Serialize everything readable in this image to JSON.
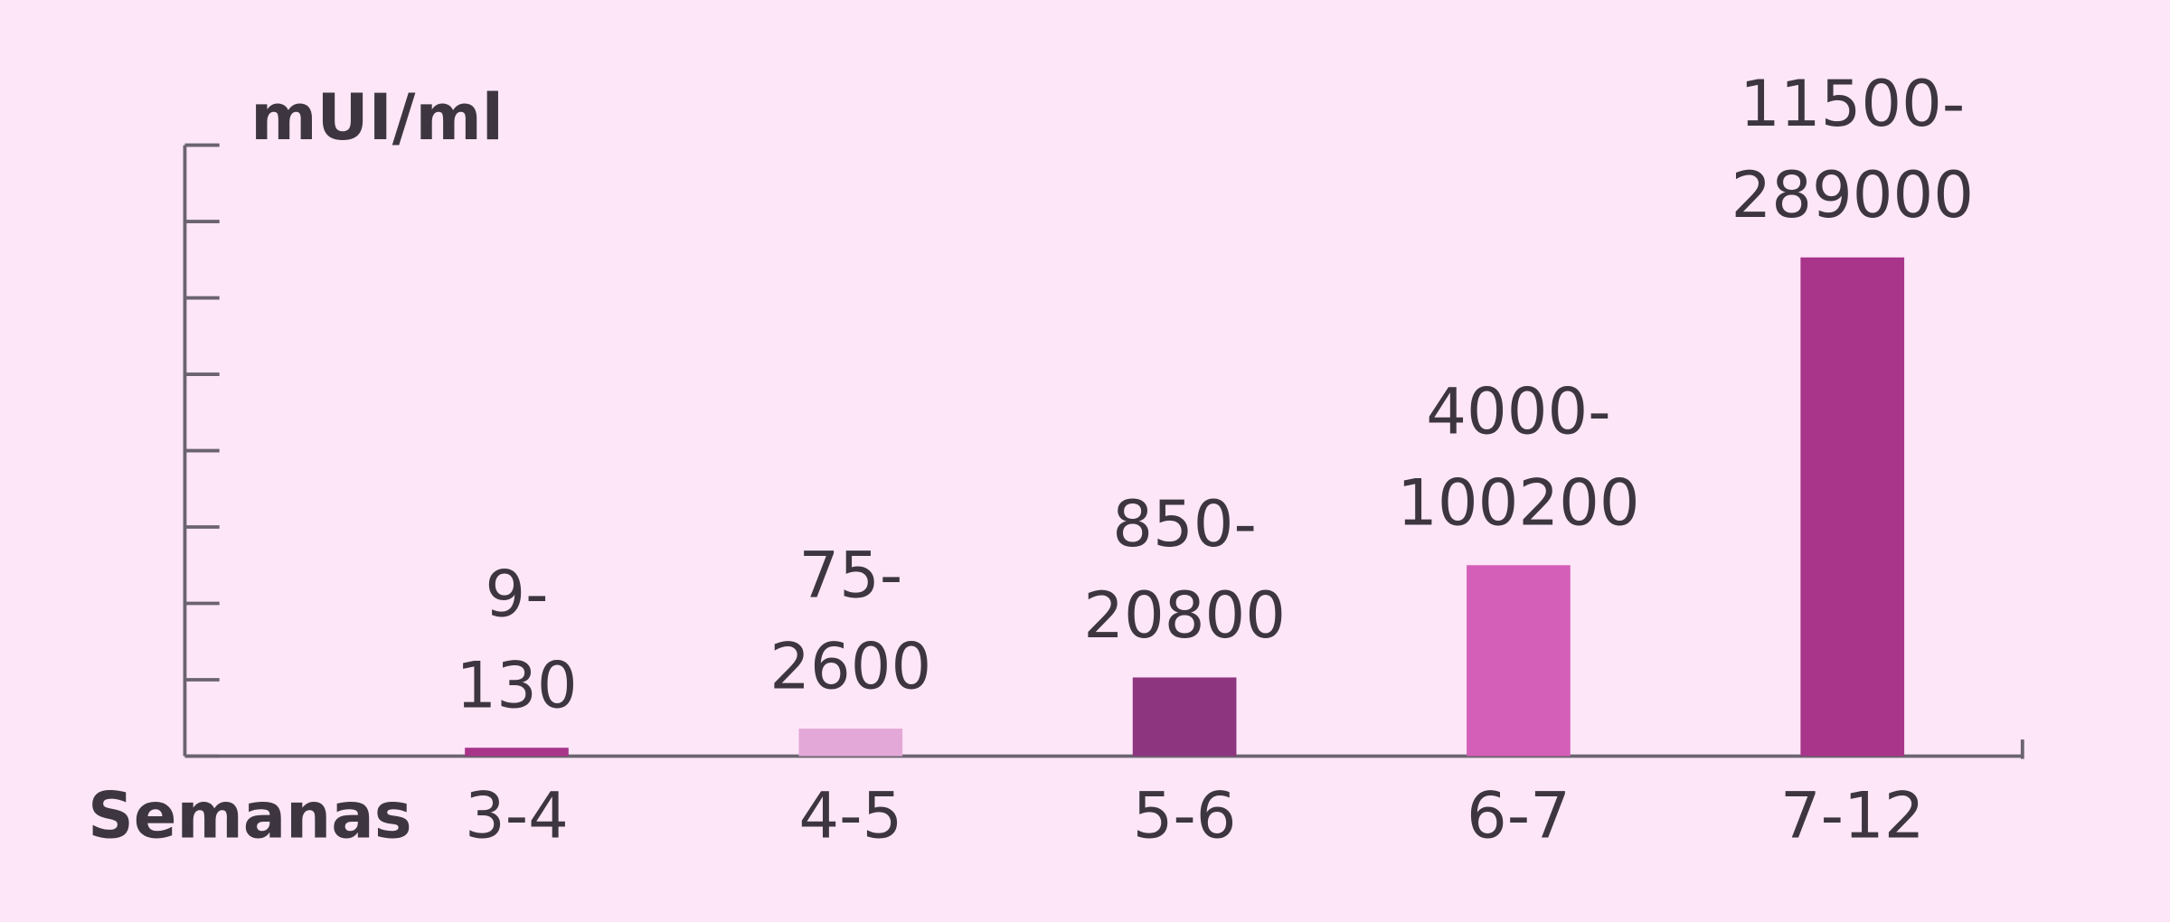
{
  "chart_data": {
    "type": "bar",
    "y_label": "mUI/ml",
    "x_label": "Semanas",
    "categories": [
      "3-4",
      "4-5",
      "5-6",
      "6-7",
      "7-12"
    ],
    "values": [
      0.11,
      0.36,
      1.03,
      2.5,
      6.53
    ],
    "range_labels": [
      [
        "9-",
        "130"
      ],
      [
        "75-",
        "2600"
      ],
      [
        "850-",
        "20800"
      ],
      [
        "4000-",
        "100200"
      ],
      [
        "11500-",
        "289000"
      ]
    ],
    "colors": [
      "#a8358a",
      "#e4a8d8",
      "#8e3580",
      "#d45fb8",
      "#a8358a"
    ],
    "ylim": [
      0,
      8
    ],
    "yticks": [
      0,
      1,
      2,
      3,
      4,
      5,
      6,
      7,
      8
    ]
  }
}
